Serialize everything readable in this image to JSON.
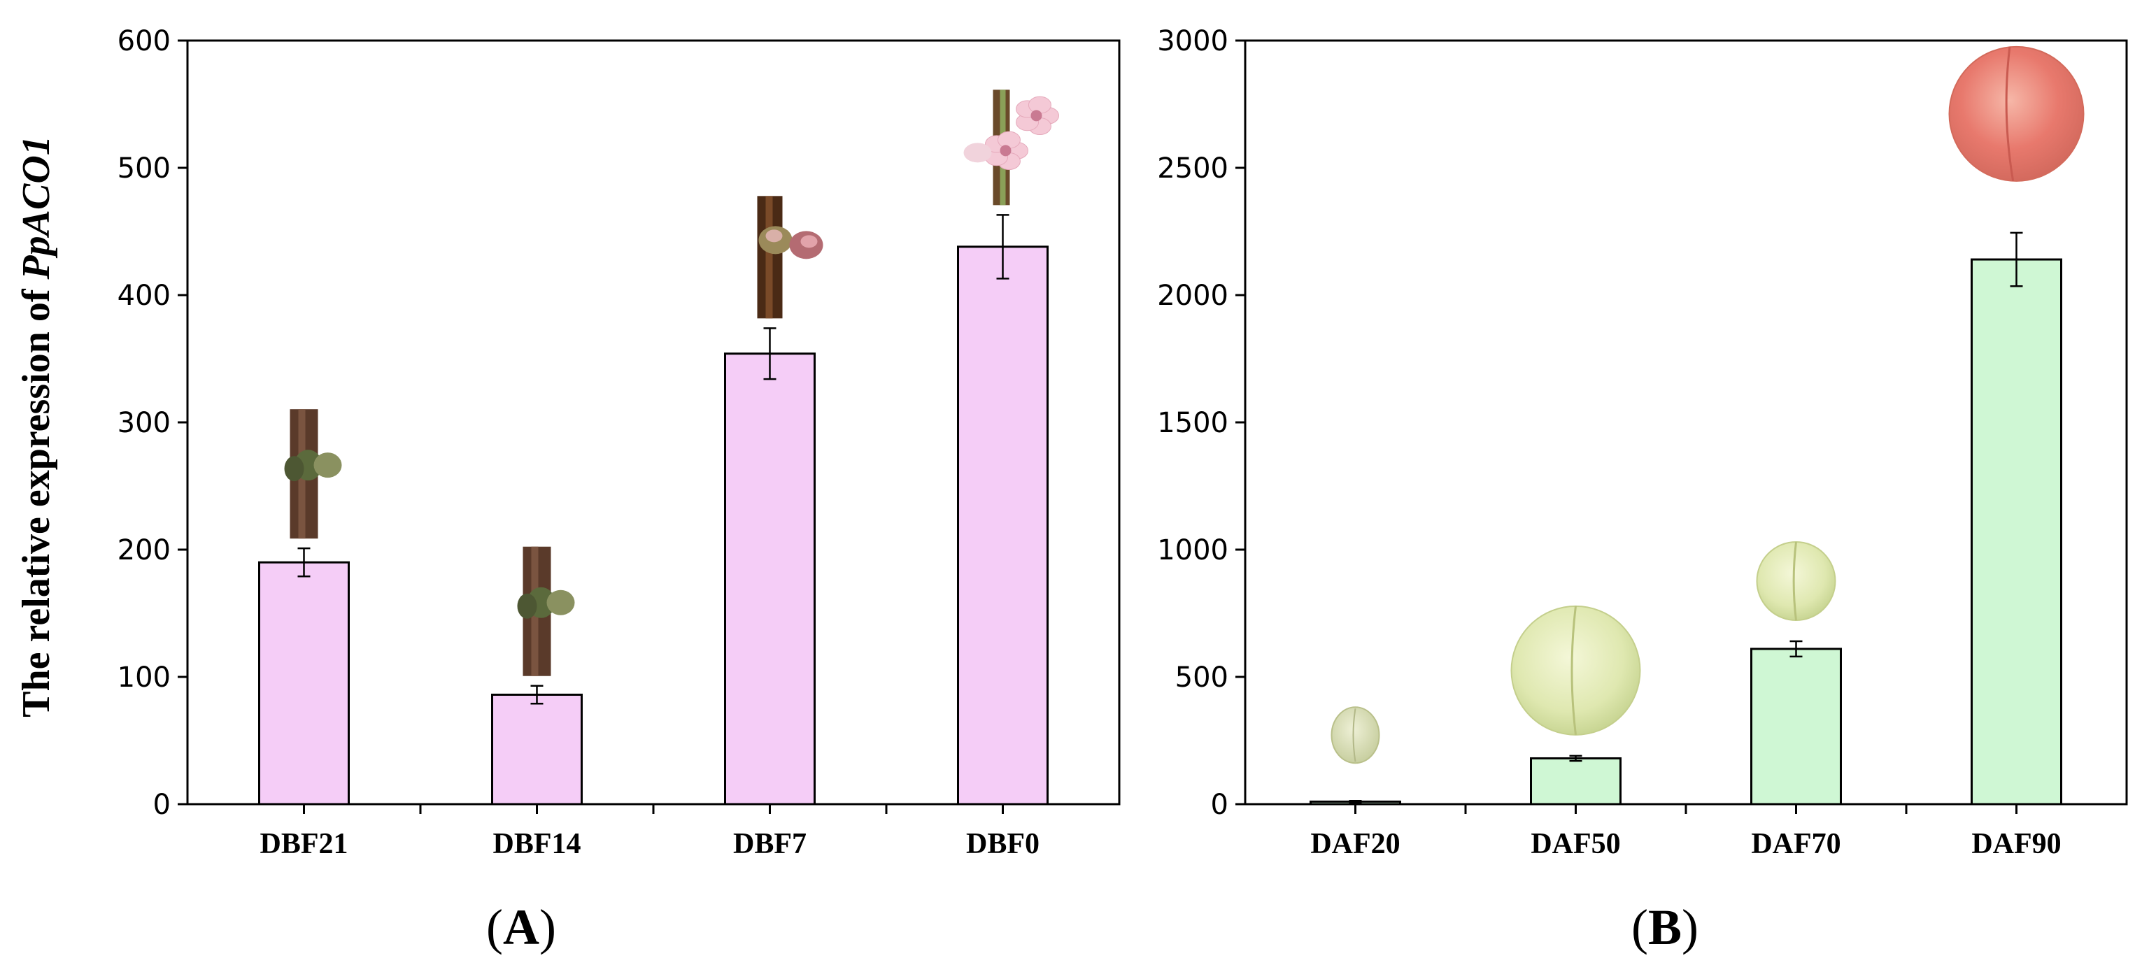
{
  "chart_data": [
    {
      "type": "bar",
      "panel_label": "(A)",
      "panel_letter": "A",
      "ylabel_prefix": "The relative expression of ",
      "ylabel_gene": "PpACO1",
      "xlabel": "",
      "categories": [
        "DBF21",
        "DBF14",
        "DBF7",
        "DBF0"
      ],
      "values": [
        190,
        86,
        354,
        438
      ],
      "errors": [
        11,
        7,
        20,
        25
      ],
      "ylim": [
        0,
        600
      ],
      "yticks": [
        0,
        100,
        200,
        300,
        400,
        500,
        600
      ],
      "grid": false,
      "bar_color": "#f5cdf7",
      "images": [
        "bud-illustration",
        "bud-illustration",
        "swelling-bud-illustration",
        "flower-illustration"
      ]
    },
    {
      "type": "bar",
      "panel_label": "(B)",
      "panel_letter": "B",
      "xlabel": "",
      "categories": [
        "DAF20",
        "DAF50",
        "DAF70",
        "DAF90"
      ],
      "values": [
        10,
        180,
        610,
        2140
      ],
      "errors": [
        3,
        10,
        30,
        105
      ],
      "ylim": [
        0,
        3000
      ],
      "yticks": [
        0,
        500,
        1000,
        1500,
        2000,
        2500,
        3000
      ],
      "grid": false,
      "bar_color": "#cff7d4",
      "images": [
        "small-fruit-illustration",
        "green-fruit-illustration",
        "green-fruit-illustration",
        "ripe-peach-illustration"
      ]
    }
  ]
}
